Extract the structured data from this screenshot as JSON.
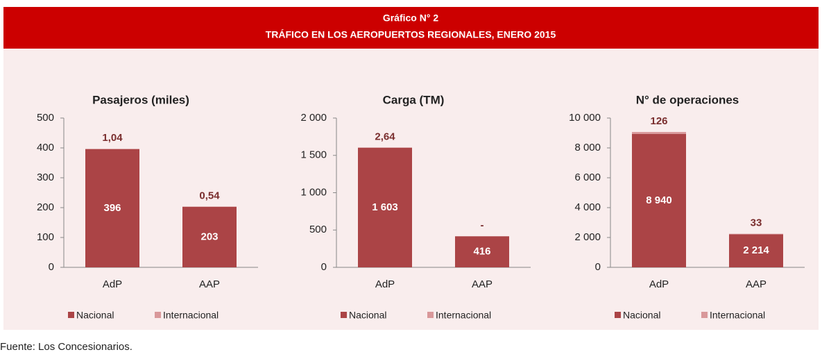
{
  "header": {
    "title": "Gráfico N° 2",
    "subtitle": "TRÁFICO EN LOS AEROPUERTOS REGIONALES, ENERO 2015"
  },
  "source": "Fuente: Los Concesionarios.",
  "chart_data": [
    {
      "type": "bar",
      "stacked": true,
      "title": "Pasajeros (miles)",
      "categories": [
        "AdP",
        "AAP"
      ],
      "series": [
        {
          "name": "Nacional",
          "color": "#ab4446",
          "values": [
            396,
            203
          ]
        },
        {
          "name": "Internacional",
          "color": "#d9989a",
          "values": [
            1.04,
            0.54
          ],
          "value_labels": [
            "1,04",
            "0,54"
          ]
        }
      ],
      "ylim": [
        0,
        500
      ],
      "yticks": [
        0,
        100,
        200,
        300,
        400,
        500
      ],
      "legend": "bottom"
    },
    {
      "type": "bar",
      "stacked": true,
      "title": "Carga (TM)",
      "categories": [
        "AdP",
        "AAP"
      ],
      "series": [
        {
          "name": "Nacional",
          "color": "#ab4446",
          "values": [
            1603,
            416
          ],
          "value_labels": [
            "1 603",
            "416"
          ]
        },
        {
          "name": "Internacional",
          "color": "#d9989a",
          "values": [
            2.64,
            0
          ],
          "value_labels": [
            "2,64",
            "-"
          ]
        }
      ],
      "ylim": [
        0,
        2000
      ],
      "yticks": [
        0,
        500,
        {
          "value": 1000,
          "label": "1 000"
        },
        {
          "value": 1500,
          "label": "1 500"
        },
        {
          "value": 2000,
          "label": "2 000"
        }
      ],
      "legend": "bottom"
    },
    {
      "type": "bar",
      "stacked": true,
      "title": "N° de operaciones",
      "categories": [
        "AdP",
        "AAP"
      ],
      "series": [
        {
          "name": "Nacional",
          "color": "#ab4446",
          "values": [
            8940,
            2214
          ],
          "value_labels": [
            "8 940",
            "2 214"
          ]
        },
        {
          "name": "Internacional",
          "color": "#d9989a",
          "values": [
            126,
            33
          ]
        }
      ],
      "ylim": [
        0,
        10000
      ],
      "yticks": [
        0,
        {
          "value": 2000,
          "label": "2 000"
        },
        {
          "value": 4000,
          "label": "4 000"
        },
        {
          "value": 6000,
          "label": "6 000"
        },
        {
          "value": 8000,
          "label": "8 000"
        },
        {
          "value": 10000,
          "label": "10 000"
        }
      ],
      "legend": "bottom"
    }
  ]
}
